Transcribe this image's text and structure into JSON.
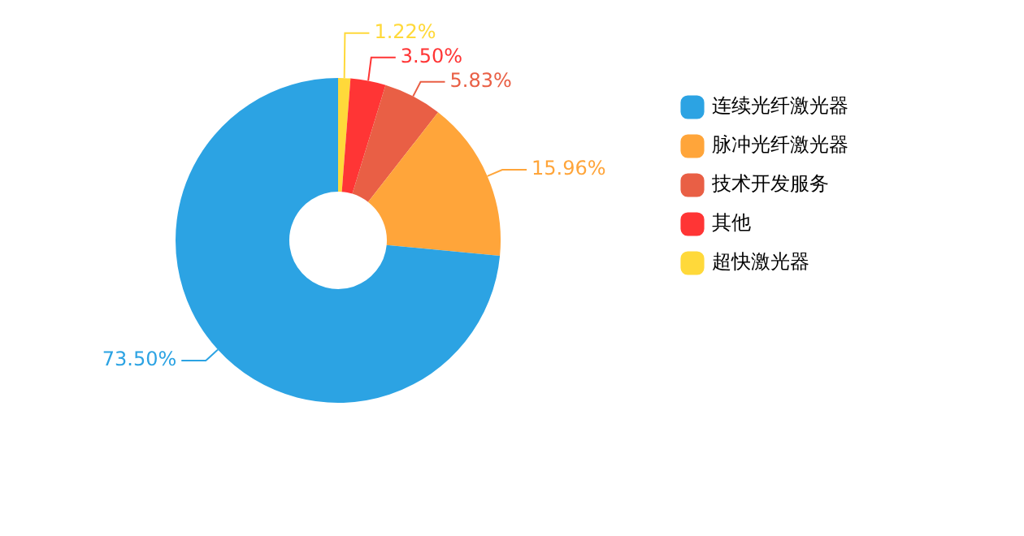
{
  "chart_data": {
    "type": "donut",
    "categories": [
      "连续光纤激光器",
      "脉冲光纤激光器",
      "技术开发服务",
      "其他",
      "超快激光器"
    ],
    "values": [
      73.5,
      15.96,
      5.83,
      3.5,
      1.22
    ],
    "colors": [
      "#2ca3e3",
      "#ffa53a",
      "#e95f45",
      "#ff3535",
      "#ffd93a"
    ],
    "value_labels": [
      "73.50%",
      "15.96%",
      "5.83%",
      "3.50%",
      "1.22%"
    ],
    "legend": "top right"
  }
}
